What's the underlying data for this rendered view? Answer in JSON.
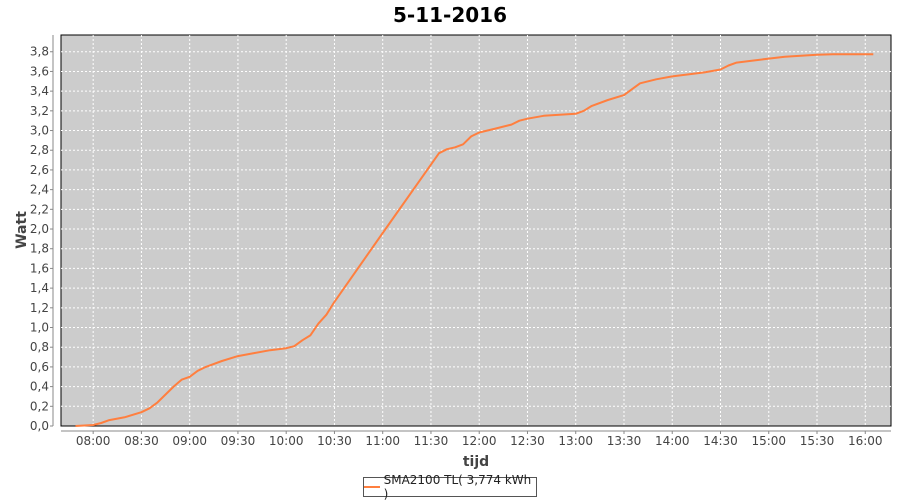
{
  "chart_data": {
    "type": "line",
    "title": "5-11-2016",
    "xlabel": "tijd",
    "ylabel": "Watt",
    "xlim": [
      "07:40",
      "16:16"
    ],
    "ylim": [
      0,
      3.97
    ],
    "x_ticks": [
      "08:00",
      "08:30",
      "09:00",
      "09:30",
      "10:00",
      "10:30",
      "11:00",
      "11:30",
      "12:00",
      "12:30",
      "13:00",
      "13:30",
      "14:00",
      "14:30",
      "15:00",
      "15:30",
      "16:00"
    ],
    "y_ticks": [
      "0,0",
      "0,2",
      "0,4",
      "0,6",
      "0,8",
      "1,0",
      "1,2",
      "1,4",
      "1,6",
      "1,8",
      "2,0",
      "2,2",
      "2,4",
      "2,6",
      "2,8",
      "3,0",
      "3,2",
      "3,4",
      "3,6",
      "3,8"
    ],
    "grid": true,
    "background": "#cccccc",
    "legend_position": "bottom",
    "series": [
      {
        "name": "SMA2100 TL( 3,774 kWh )",
        "color": "#ff7f3f",
        "x": [
          "07:49",
          "08:00",
          "08:05",
          "08:10",
          "08:20",
          "08:30",
          "08:35",
          "08:40",
          "08:50",
          "08:55",
          "09:00",
          "09:05",
          "09:10",
          "09:20",
          "09:30",
          "09:40",
          "09:50",
          "10:00",
          "10:05",
          "10:10",
          "10:15",
          "10:20",
          "10:25",
          "10:30",
          "11:00",
          "11:35",
          "11:40",
          "11:45",
          "11:50",
          "11:55",
          "12:00",
          "12:10",
          "12:20",
          "12:25",
          "12:30",
          "12:40",
          "12:50",
          "13:00",
          "13:05",
          "13:10",
          "13:20",
          "13:30",
          "13:35",
          "13:40",
          "13:50",
          "14:00",
          "14:10",
          "14:20",
          "14:30",
          "14:35",
          "14:40",
          "14:50",
          "15:00",
          "15:10",
          "15:20",
          "15:30",
          "15:40",
          "16:00",
          "16:05"
        ],
        "y": [
          0.0,
          0.01,
          0.03,
          0.06,
          0.09,
          0.14,
          0.18,
          0.24,
          0.4,
          0.47,
          0.5,
          0.56,
          0.6,
          0.66,
          0.71,
          0.74,
          0.77,
          0.79,
          0.81,
          0.87,
          0.92,
          1.04,
          1.13,
          1.26,
          1.96,
          2.77,
          2.81,
          2.83,
          2.86,
          2.94,
          2.98,
          3.02,
          3.06,
          3.1,
          3.12,
          3.15,
          3.16,
          3.17,
          3.2,
          3.25,
          3.31,
          3.36,
          3.42,
          3.48,
          3.52,
          3.55,
          3.57,
          3.59,
          3.62,
          3.66,
          3.69,
          3.71,
          3.73,
          3.75,
          3.76,
          3.77,
          3.775,
          3.774,
          3.774
        ]
      }
    ]
  }
}
